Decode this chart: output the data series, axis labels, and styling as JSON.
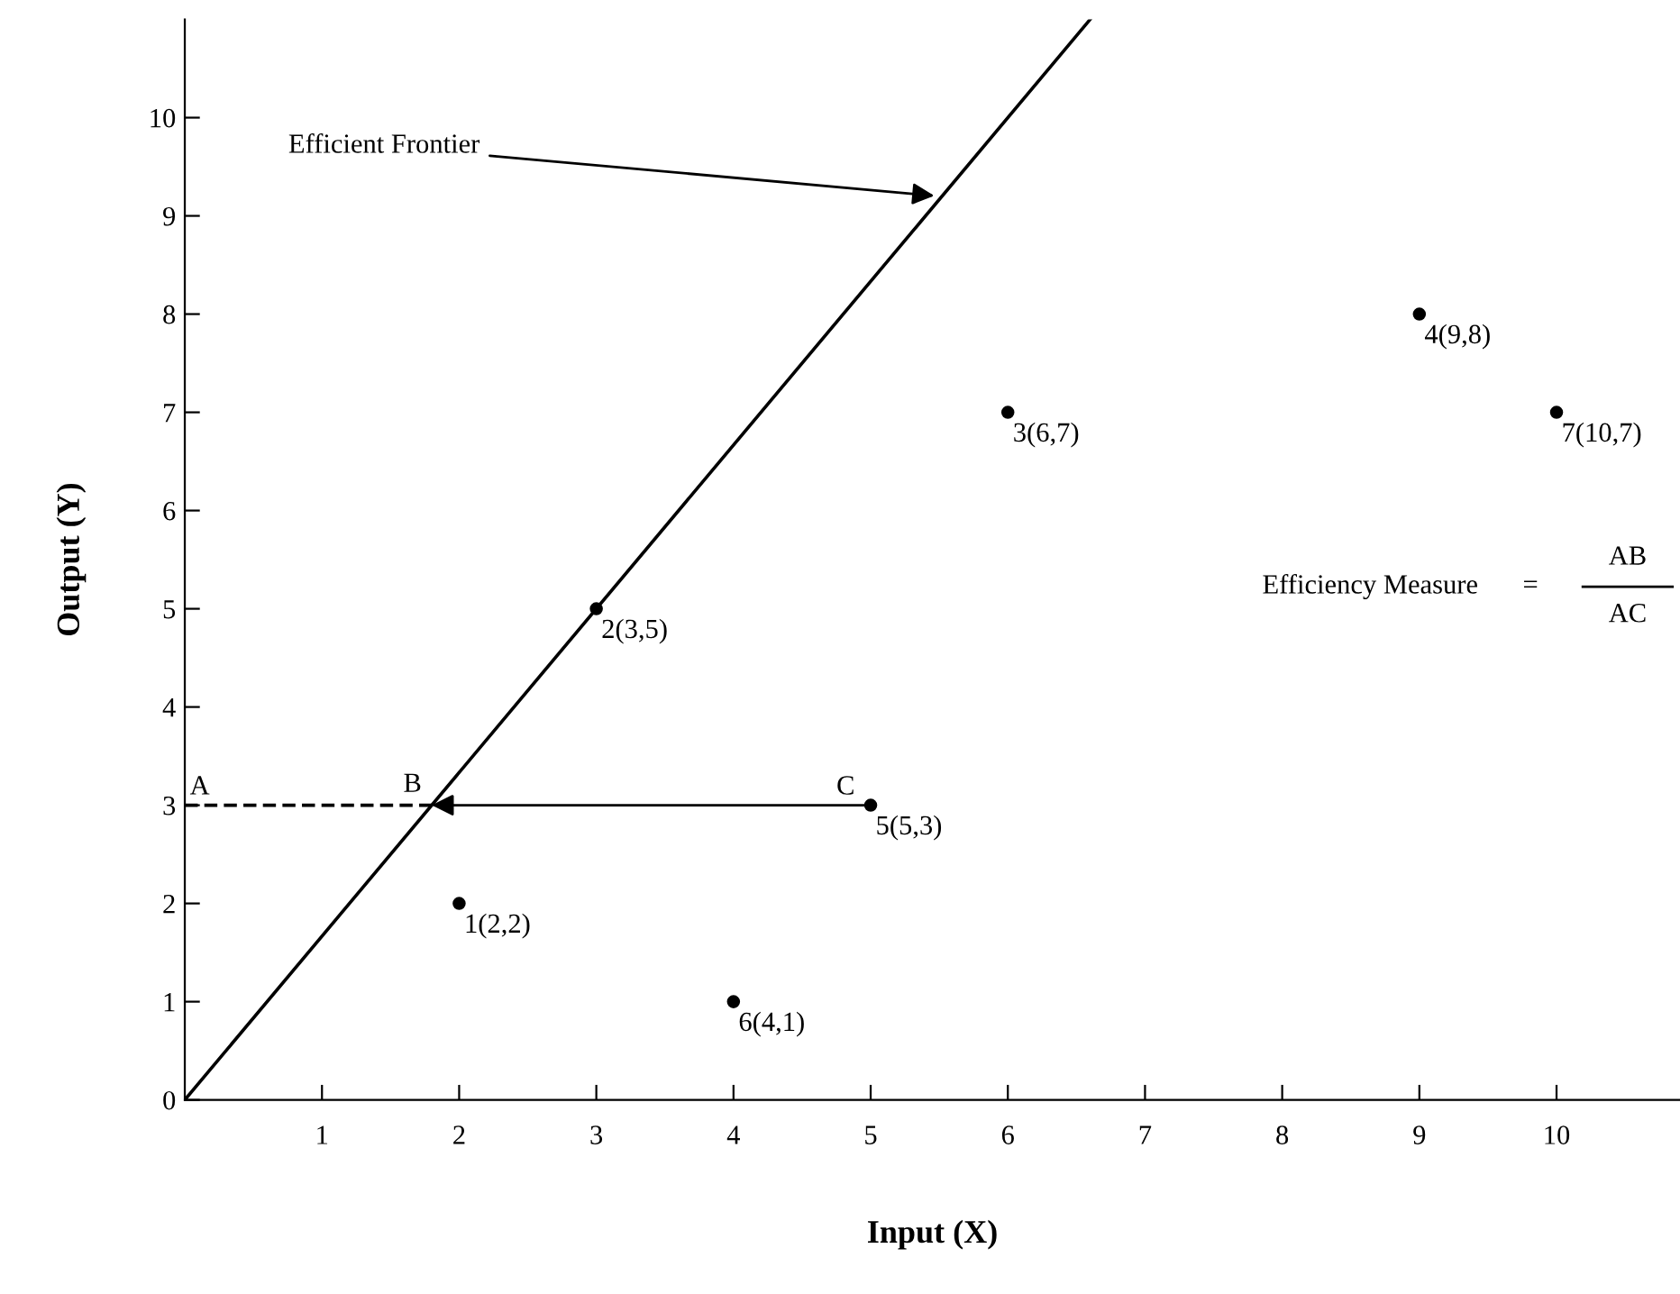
{
  "chart_data": {
    "type": "scatter",
    "xlabel": "Input (X)",
    "ylabel": "Output (Y)",
    "xlim": [
      0,
      10.9
    ],
    "ylim": [
      0,
      11
    ],
    "xticks": [
      1,
      2,
      3,
      4,
      5,
      6,
      7,
      8,
      9,
      10
    ],
    "yticks": [
      0,
      1,
      2,
      3,
      4,
      5,
      6,
      7,
      8,
      9,
      10
    ],
    "grid": false,
    "legend": false,
    "series": [
      {
        "type": "line",
        "color": "#000000",
        "x": [
          0,
          6.6
        ],
        "values": [
          0,
          11
        ],
        "line_style": "solid",
        "marker": "none"
      },
      {
        "type": "line",
        "color": "#000000",
        "x": [
          0,
          1.8
        ],
        "values": [
          3,
          3
        ],
        "line_style": "dashed",
        "marker": "none"
      },
      {
        "color": "#000000",
        "x": [
          2,
          3,
          6,
          9,
          5,
          4,
          10
        ],
        "values": [
          2,
          5,
          7,
          8,
          3,
          1,
          7
        ],
        "marker": "circle",
        "value_labels": [
          "1(2,2)",
          "2(3,5)",
          "3(6,7)",
          "4(9,8)",
          "5(5,3)",
          "6(4,1)",
          "7(10,7)"
        ]
      }
    ],
    "annotations": [
      {
        "text": "Efficient Frontier",
        "x": 5.5,
        "y": 9.2
      },
      {
        "text": "A",
        "x": 0,
        "y": 3
      },
      {
        "text": "B",
        "x": 1.8,
        "y": 3
      },
      {
        "text": "C",
        "x": 5,
        "y": 3
      },
      "Efficiency Measure",
      "=",
      "AB",
      "AC"
    ]
  }
}
